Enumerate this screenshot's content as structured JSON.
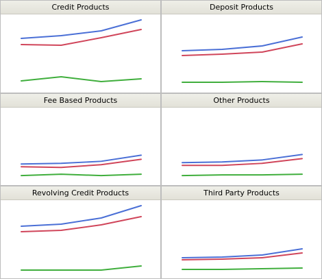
{
  "colors": {
    "blue": "#4a6fd6",
    "red": "#d0455a",
    "green": "#3fae3c"
  },
  "chart_data": [
    {
      "type": "line",
      "title": "Credit Products",
      "x": [
        1,
        2,
        3,
        4
      ],
      "ylim": [
        0,
        100
      ],
      "series": [
        {
          "color_key": "blue",
          "values": [
            71,
            75,
            82,
            98
          ]
        },
        {
          "color_key": "red",
          "values": [
            62,
            61,
            72,
            84
          ]
        },
        {
          "color_key": "green",
          "values": [
            9,
            15,
            8,
            12
          ]
        }
      ]
    },
    {
      "type": "line",
      "title": "Deposit Products",
      "x": [
        1,
        2,
        3,
        4
      ],
      "ylim": [
        0,
        100
      ],
      "series": [
        {
          "color_key": "blue",
          "values": [
            53,
            55,
            60,
            73
          ]
        },
        {
          "color_key": "red",
          "values": [
            46,
            48,
            51,
            63
          ]
        },
        {
          "color_key": "green",
          "values": [
            7,
            7,
            8,
            7
          ]
        }
      ]
    },
    {
      "type": "line",
      "title": "Fee Based Products",
      "x": [
        1,
        2,
        3,
        4
      ],
      "ylim": [
        0,
        100
      ],
      "series": [
        {
          "color_key": "blue",
          "values": [
            23,
            24,
            27,
            36
          ]
        },
        {
          "color_key": "red",
          "values": [
            19,
            18,
            22,
            30
          ]
        },
        {
          "color_key": "green",
          "values": [
            6,
            8,
            6,
            8
          ]
        }
      ]
    },
    {
      "type": "line",
      "title": "Other Products",
      "x": [
        1,
        2,
        3,
        4
      ],
      "ylim": [
        0,
        100
      ],
      "series": [
        {
          "color_key": "blue",
          "values": [
            25,
            26,
            29,
            37
          ]
        },
        {
          "color_key": "red",
          "values": [
            21,
            21,
            24,
            31
          ]
        },
        {
          "color_key": "green",
          "values": [
            6,
            7,
            7,
            8
          ]
        }
      ]
    },
    {
      "type": "line",
      "title": "Revolving Credit Products",
      "x": [
        1,
        2,
        3,
        4
      ],
      "ylim": [
        0,
        100
      ],
      "series": [
        {
          "color_key": "blue",
          "values": [
            68,
            71,
            80,
            98
          ]
        },
        {
          "color_key": "red",
          "values": [
            60,
            62,
            70,
            82
          ]
        },
        {
          "color_key": "green",
          "values": [
            4,
            4,
            4,
            10
          ]
        }
      ]
    },
    {
      "type": "line",
      "title": "Third Party Products",
      "x": [
        1,
        2,
        3,
        4
      ],
      "ylim": [
        0,
        100
      ],
      "series": [
        {
          "color_key": "blue",
          "values": [
            22,
            23,
            26,
            35
          ]
        },
        {
          "color_key": "red",
          "values": [
            19,
            20,
            22,
            29
          ]
        },
        {
          "color_key": "green",
          "values": [
            5,
            5,
            6,
            7
          ]
        }
      ]
    }
  ]
}
